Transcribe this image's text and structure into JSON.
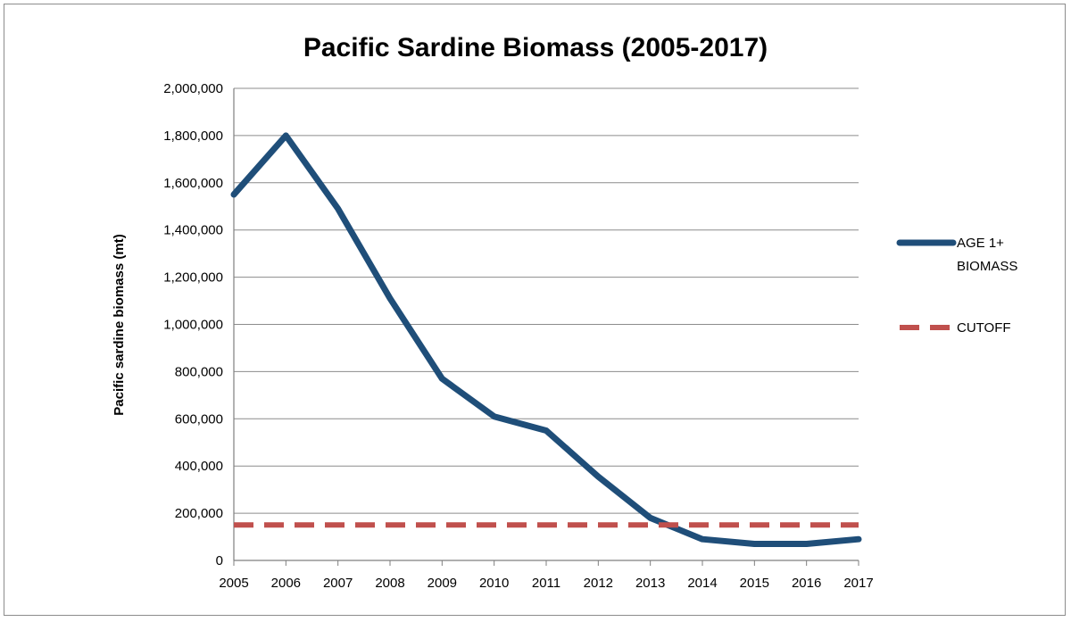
{
  "chart_data": {
    "type": "line",
    "title": "Pacific Sardine Biomass (2005-2017)",
    "xlabel": "",
    "ylabel": "Pacific sardine biomass (mt)",
    "x": [
      "2005",
      "2006",
      "2007",
      "2008",
      "2009",
      "2010",
      "2011",
      "2012",
      "2013",
      "2014",
      "2015",
      "2016",
      "2017"
    ],
    "ylim": [
      0,
      2000000
    ],
    "yticks": [
      {
        "value": 0,
        "label": "0"
      },
      {
        "value": 200000,
        "label": "200,000"
      },
      {
        "value": 400000,
        "label": "400,000"
      },
      {
        "value": 600000,
        "label": "600,000"
      },
      {
        "value": 800000,
        "label": "800,000"
      },
      {
        "value": 1000000,
        "label": "1,000,000"
      },
      {
        "value": 1200000,
        "label": "1,200,000"
      },
      {
        "value": 1400000,
        "label": "1,400,000"
      },
      {
        "value": 1600000,
        "label": "1,600,000"
      },
      {
        "value": 1800000,
        "label": "1,800,000"
      },
      {
        "value": 2000000,
        "label": "2,000,000"
      }
    ],
    "grid": true,
    "legend_position": "right",
    "series": [
      {
        "name": "AGE 1+ BIOMASS",
        "legend_lines": [
          "AGE 1+",
          "BIOMASS"
        ],
        "style": "solid",
        "color": "#1f4e79",
        "values": [
          1550000,
          1800000,
          1490000,
          1110000,
          770000,
          610000,
          550000,
          355000,
          180000,
          90000,
          70000,
          70000,
          90000
        ]
      },
      {
        "name": "CUTOFF",
        "legend_lines": [
          "CUTOFF"
        ],
        "style": "dashed",
        "color": "#c0504d",
        "values": [
          150000,
          150000,
          150000,
          150000,
          150000,
          150000,
          150000,
          150000,
          150000,
          150000,
          150000,
          150000,
          150000
        ]
      }
    ]
  }
}
